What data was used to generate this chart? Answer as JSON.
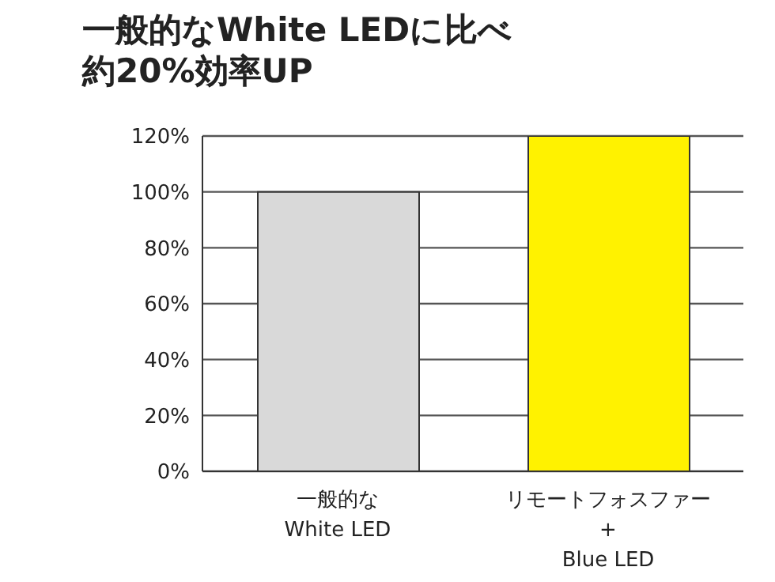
{
  "chart_data": {
    "type": "bar",
    "title": "一般的なWhite LEDに比べ約20%効率UP",
    "categories": [
      "一般的な\nWhite LED",
      "リモートフォスファー\n+\nBlue LED"
    ],
    "values": [
      100,
      120
    ],
    "colors": [
      "#d9d9d9",
      "#fff200"
    ],
    "ylim": [
      0,
      120
    ],
    "yticks": [
      {
        "value": 0,
        "label": "0%"
      },
      {
        "value": 20,
        "label": "20%"
      },
      {
        "value": 40,
        "label": "40%"
      },
      {
        "value": 60,
        "label": "60%"
      },
      {
        "value": 80,
        "label": "80%"
      },
      {
        "value": 100,
        "label": "100%"
      },
      {
        "value": 120,
        "label": "120%"
      }
    ],
    "grid": "y"
  }
}
